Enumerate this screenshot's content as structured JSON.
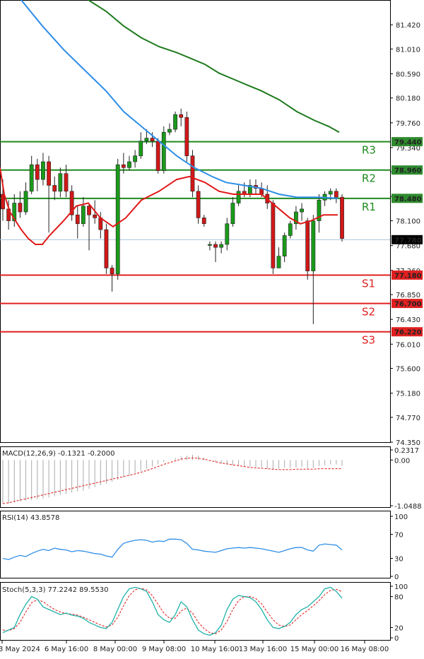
{
  "chart_data": {
    "type": "candlestick",
    "main_axis": {
      "ticks": [
        "81.420",
        "81.010",
        "80.590",
        "80.180",
        "79.760",
        "79.340",
        "78.930",
        "78.510",
        "78.100",
        "77.680",
        "77.260",
        "76.850",
        "76.430",
        "76.010",
        "75.600",
        "75.180",
        "74.770",
        "74.350"
      ],
      "range": [
        74.35,
        81.84
      ]
    },
    "price_badges": [
      {
        "text": "79.440",
        "bg": "#2e8b2e"
      },
      {
        "text": "78.960",
        "bg": "#2e8b2e"
      },
      {
        "text": "78.480",
        "bg": "#2e8b2e"
      },
      {
        "text": "77.780",
        "bg": "#000000"
      },
      {
        "text": "77.180",
        "bg": "#e02020"
      },
      {
        "text": "76.700",
        "bg": "#e02020"
      },
      {
        "text": "76.220",
        "bg": "#e02020"
      }
    ],
    "levels": [
      {
        "label": "R3",
        "value": 79.44,
        "color": "#1e8a1e"
      },
      {
        "label": "R2",
        "value": 78.96,
        "color": "#1e8a1e"
      },
      {
        "label": "R1",
        "value": 78.48,
        "color": "#1e8a1e"
      },
      {
        "label": "S1",
        "value": 77.18,
        "color": "#e02020"
      },
      {
        "label": "S2",
        "value": 76.7,
        "color": "#e02020"
      },
      {
        "label": "S3",
        "value": 76.22,
        "color": "#e02020"
      }
    ],
    "current_price": 77.78,
    "candles": [
      [
        78.55,
        78.3,
        78.8,
        78.1
      ],
      [
        78.3,
        78.1,
        78.45,
        77.95
      ],
      [
        78.1,
        78.4,
        78.55,
        78.0
      ],
      [
        78.4,
        78.25,
        78.6,
        78.15
      ],
      [
        78.25,
        78.6,
        78.75,
        78.2
      ],
      [
        78.6,
        79.05,
        79.2,
        78.55
      ],
      [
        79.05,
        78.8,
        79.15,
        78.6
      ],
      [
        78.8,
        79.1,
        79.25,
        78.7
      ],
      [
        79.1,
        78.7,
        79.2,
        77.9
      ],
      [
        78.7,
        78.6,
        78.85,
        78.45
      ],
      [
        78.6,
        78.9,
        79.0,
        78.5
      ],
      [
        78.9,
        78.6,
        79.05,
        78.5
      ],
      [
        78.6,
        78.2,
        78.7,
        78.1
      ],
      [
        78.2,
        78.05,
        78.35,
        77.8
      ],
      [
        78.05,
        78.35,
        78.5,
        78.0
      ],
      [
        78.35,
        78.2,
        78.4,
        77.6
      ],
      [
        78.2,
        78.15,
        78.45,
        78.05
      ],
      [
        78.15,
        77.95,
        78.25,
        77.8
      ],
      [
        77.95,
        77.3,
        78.05,
        77.2
      ],
      [
        77.3,
        77.2,
        77.35,
        76.9
      ],
      [
        77.2,
        79.05,
        79.15,
        77.1
      ],
      [
        79.05,
        79.0,
        79.25,
        78.9
      ],
      [
        79.0,
        79.1,
        79.2,
        78.95
      ],
      [
        79.1,
        79.2,
        79.3,
        79.0
      ],
      [
        79.2,
        79.45,
        79.6,
        79.15
      ],
      [
        79.45,
        79.5,
        79.65,
        79.4
      ],
      [
        79.5,
        79.45,
        79.6,
        79.35
      ],
      [
        79.45,
        78.95,
        79.5,
        78.9
      ],
      [
        78.95,
        79.6,
        79.7,
        78.9
      ],
      [
        79.6,
        79.65,
        79.75,
        79.55
      ],
      [
        79.65,
        79.9,
        79.95,
        79.6
      ],
      [
        79.9,
        79.85,
        80.0,
        79.7
      ],
      [
        79.85,
        79.2,
        79.95,
        79.1
      ],
      [
        79.2,
        78.6,
        79.3,
        78.5
      ],
      [
        78.6,
        78.15,
        78.7,
        78.05
      ],
      [
        78.15,
        78.05,
        78.2,
        78.0
      ],
      [
        77.7,
        77.7,
        77.75,
        77.6
      ],
      [
        77.7,
        77.65,
        77.75,
        77.4
      ],
      [
        77.65,
        77.7,
        77.75,
        77.55
      ],
      [
        77.7,
        78.05,
        78.15,
        77.6
      ],
      [
        78.05,
        78.4,
        78.5,
        78.0
      ],
      [
        78.4,
        78.6,
        78.7,
        78.35
      ],
      [
        78.6,
        78.55,
        78.75,
        78.5
      ],
      [
        78.55,
        78.7,
        78.8,
        78.5
      ],
      [
        78.7,
        78.65,
        78.8,
        78.55
      ],
      [
        78.65,
        78.55,
        78.75,
        78.5
      ],
      [
        78.55,
        78.4,
        78.7,
        78.3
      ],
      [
        78.4,
        77.3,
        78.45,
        77.2
      ],
      [
        77.3,
        77.5,
        77.65,
        77.3
      ],
      [
        77.5,
        77.85,
        77.9,
        77.4
      ],
      [
        77.85,
        78.05,
        78.1,
        77.8
      ],
      [
        78.05,
        78.25,
        78.35,
        77.95
      ],
      [
        78.25,
        78.3,
        78.4,
        78.1
      ],
      [
        78.1,
        77.25,
        78.15,
        77.1
      ],
      [
        77.25,
        78.1,
        78.2,
        76.35
      ],
      [
        78.1,
        78.45,
        78.55,
        77.9
      ],
      [
        78.45,
        78.55,
        78.6,
        78.35
      ],
      [
        78.55,
        78.6,
        78.65,
        78.45
      ],
      [
        78.6,
        78.5,
        78.65,
        78.4
      ],
      [
        78.5,
        77.8,
        78.55,
        77.75
      ]
    ],
    "ma_red": [
      [
        0,
        79.0
      ],
      [
        6,
        78.55
      ],
      [
        14,
        78.25
      ],
      [
        22,
        78.1
      ],
      [
        30,
        77.95
      ],
      [
        40,
        77.8
      ],
      [
        50,
        77.7
      ],
      [
        60,
        77.7
      ],
      [
        70,
        77.85
      ],
      [
        90,
        78.1
      ],
      [
        108,
        78.35
      ],
      [
        125,
        78.4
      ],
      [
        142,
        78.15
      ],
      [
        160,
        78.0
      ],
      [
        178,
        78.15
      ],
      [
        200,
        78.45
      ],
      [
        225,
        78.6
      ],
      [
        250,
        78.8
      ],
      [
        268,
        78.85
      ],
      [
        290,
        78.75
      ],
      [
        310,
        78.6
      ],
      [
        330,
        78.55
      ],
      [
        350,
        78.55
      ],
      [
        370,
        78.55
      ],
      [
        390,
        78.35
      ],
      [
        410,
        78.15
      ],
      [
        425,
        78.05
      ],
      [
        440,
        78.1
      ],
      [
        458,
        78.2
      ],
      [
        478,
        78.2
      ]
    ],
    "ma_blue": [
      [
        30,
        81.84
      ],
      [
        60,
        81.4
      ],
      [
        90,
        81.0
      ],
      [
        120,
        80.65
      ],
      [
        150,
        80.3
      ],
      [
        175,
        79.95
      ],
      [
        200,
        79.7
      ],
      [
        225,
        79.45
      ],
      [
        250,
        79.2
      ],
      [
        275,
        79.0
      ],
      [
        300,
        78.85
      ],
      [
        320,
        78.75
      ],
      [
        345,
        78.7
      ],
      [
        370,
        78.65
      ],
      [
        395,
        78.55
      ],
      [
        420,
        78.5
      ],
      [
        450,
        78.5
      ],
      [
        478,
        78.48
      ]
    ],
    "ma_green": [
      [
        125,
        81.84
      ],
      [
        150,
        81.65
      ],
      [
        175,
        81.4
      ],
      [
        200,
        81.2
      ],
      [
        225,
        81.05
      ],
      [
        250,
        80.95
      ],
      [
        270,
        80.85
      ],
      [
        290,
        80.75
      ],
      [
        310,
        80.6
      ],
      [
        330,
        80.5
      ],
      [
        350,
        80.4
      ],
      [
        370,
        80.3
      ],
      [
        395,
        80.15
      ],
      [
        420,
        79.95
      ],
      [
        445,
        79.8
      ],
      [
        465,
        79.7
      ],
      [
        480,
        79.6
      ]
    ],
    "macd": {
      "title": "MACD(12,26,9) -0.1321 -0.2000",
      "ticks": [
        "0.2317",
        "0.00",
        "-1.0488"
      ],
      "range": [
        -1.0488,
        0.2317
      ],
      "hist": [
        -1.0,
        -1.0,
        -0.97,
        -0.95,
        -0.93,
        -0.92,
        -0.9,
        -0.88,
        -0.86,
        -0.83,
        -0.8,
        -0.78,
        -0.75,
        -0.72,
        -0.7,
        -0.66,
        -0.62,
        -0.58,
        -0.54,
        -0.5,
        -0.45,
        -0.4,
        -0.35,
        -0.3,
        -0.25,
        -0.2,
        -0.15,
        -0.1,
        -0.05,
        0.0,
        0.05,
        0.08,
        0.1,
        0.12,
        0.1,
        0.05,
        0.0,
        -0.05,
        -0.08,
        -0.1,
        -0.12,
        -0.14,
        -0.15,
        -0.15,
        -0.16,
        -0.17,
        -0.2,
        -0.22,
        -0.2,
        -0.18,
        -0.18,
        -0.17,
        -0.16,
        -0.2,
        -0.18,
        -0.14,
        -0.12,
        -0.1,
        -0.1,
        -0.13
      ],
      "signal": [
        -1.0,
        -0.98,
        -0.95,
        -0.92,
        -0.89,
        -0.86,
        -0.83,
        -0.8,
        -0.77,
        -0.74,
        -0.71,
        -0.68,
        -0.65,
        -0.62,
        -0.59,
        -0.56,
        -0.53,
        -0.5,
        -0.47,
        -0.44,
        -0.41,
        -0.38,
        -0.35,
        -0.32,
        -0.28,
        -0.24,
        -0.2,
        -0.15,
        -0.1,
        -0.06,
        -0.02,
        0.02,
        0.04,
        0.05,
        0.04,
        0.02,
        -0.01,
        -0.04,
        -0.07,
        -0.09,
        -0.11,
        -0.13,
        -0.15,
        -0.17,
        -0.18,
        -0.19,
        -0.2,
        -0.21,
        -0.22,
        -0.22,
        -0.22,
        -0.21,
        -0.21,
        -0.21,
        -0.21,
        -0.2,
        -0.2,
        -0.2,
        -0.2,
        -0.2
      ]
    },
    "rsi": {
      "title": "RSI(14) 43.8578",
      "ticks": [
        "100",
        "70",
        "30",
        "0"
      ],
      "range": [
        0,
        100
      ],
      "values": [
        30,
        28,
        32,
        35,
        33,
        38,
        42,
        45,
        43,
        47,
        45,
        44,
        41,
        43,
        42,
        40,
        38,
        37,
        34,
        32,
        45,
        55,
        58,
        60,
        61,
        60,
        57,
        59,
        58,
        62,
        62,
        61,
        55,
        45,
        44,
        42,
        41,
        40,
        43,
        46,
        47,
        48,
        47,
        48,
        47,
        46,
        44,
        42,
        40,
        43,
        46,
        48,
        48,
        44,
        42,
        52,
        54,
        53,
        52,
        44
      ]
    },
    "stoch": {
      "title": "Stoch(5,3,3) 77.2242 89.5530",
      "ticks": [
        "100",
        "80",
        "20",
        "0"
      ],
      "range": [
        0,
        100
      ],
      "k": [
        10,
        15,
        20,
        45,
        65,
        80,
        75,
        60,
        55,
        50,
        45,
        48,
        44,
        42,
        38,
        30,
        25,
        20,
        18,
        30,
        55,
        80,
        95,
        98,
        95,
        90,
        70,
        45,
        35,
        30,
        45,
        70,
        60,
        35,
        15,
        8,
        5,
        10,
        25,
        55,
        75,
        82,
        80,
        78,
        70,
        55,
        35,
        20,
        18,
        22,
        30,
        45,
        55,
        60,
        70,
        80,
        95,
        98,
        90,
        77
      ],
      "d": [
        15,
        14,
        18,
        30,
        50,
        68,
        74,
        70,
        62,
        55,
        50,
        47,
        46,
        44,
        40,
        35,
        30,
        25,
        21,
        25,
        40,
        62,
        82,
        93,
        96,
        93,
        82,
        65,
        48,
        38,
        38,
        52,
        58,
        48,
        30,
        18,
        10,
        8,
        15,
        32,
        55,
        72,
        80,
        80,
        76,
        66,
        50,
        35,
        25,
        22,
        25,
        35,
        45,
        53,
        62,
        72,
        84,
        92,
        94,
        89.5
      ]
    },
    "x_labels": [
      "3 May 2024",
      "6 May 16:00",
      "8 May 00:00",
      "9 May 08:00",
      "10 May 16:00",
      "13 May 16:00",
      "15 May 00:00",
      "16 May 08:00"
    ]
  }
}
